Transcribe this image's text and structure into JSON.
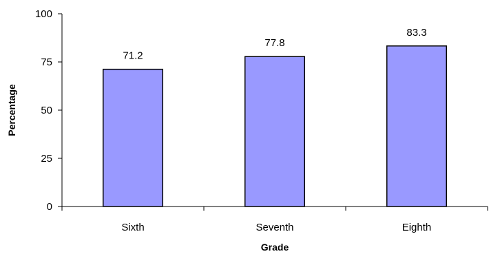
{
  "chart_data": {
    "type": "bar",
    "categories": [
      "Sixth",
      "Seventh",
      "Eighth"
    ],
    "values": [
      71.2,
      77.8,
      83.3
    ],
    "data_labels": [
      "71.2",
      "77.8",
      "83.3"
    ],
    "title": "",
    "xlabel": "Grade",
    "ylabel": "Percentage",
    "ylim": [
      0,
      100
    ],
    "yticks": [
      0,
      25,
      50,
      75,
      100
    ],
    "grid": false,
    "legend": "none",
    "bar_color": "#9999ff",
    "bar_edge_color": "#000000"
  }
}
